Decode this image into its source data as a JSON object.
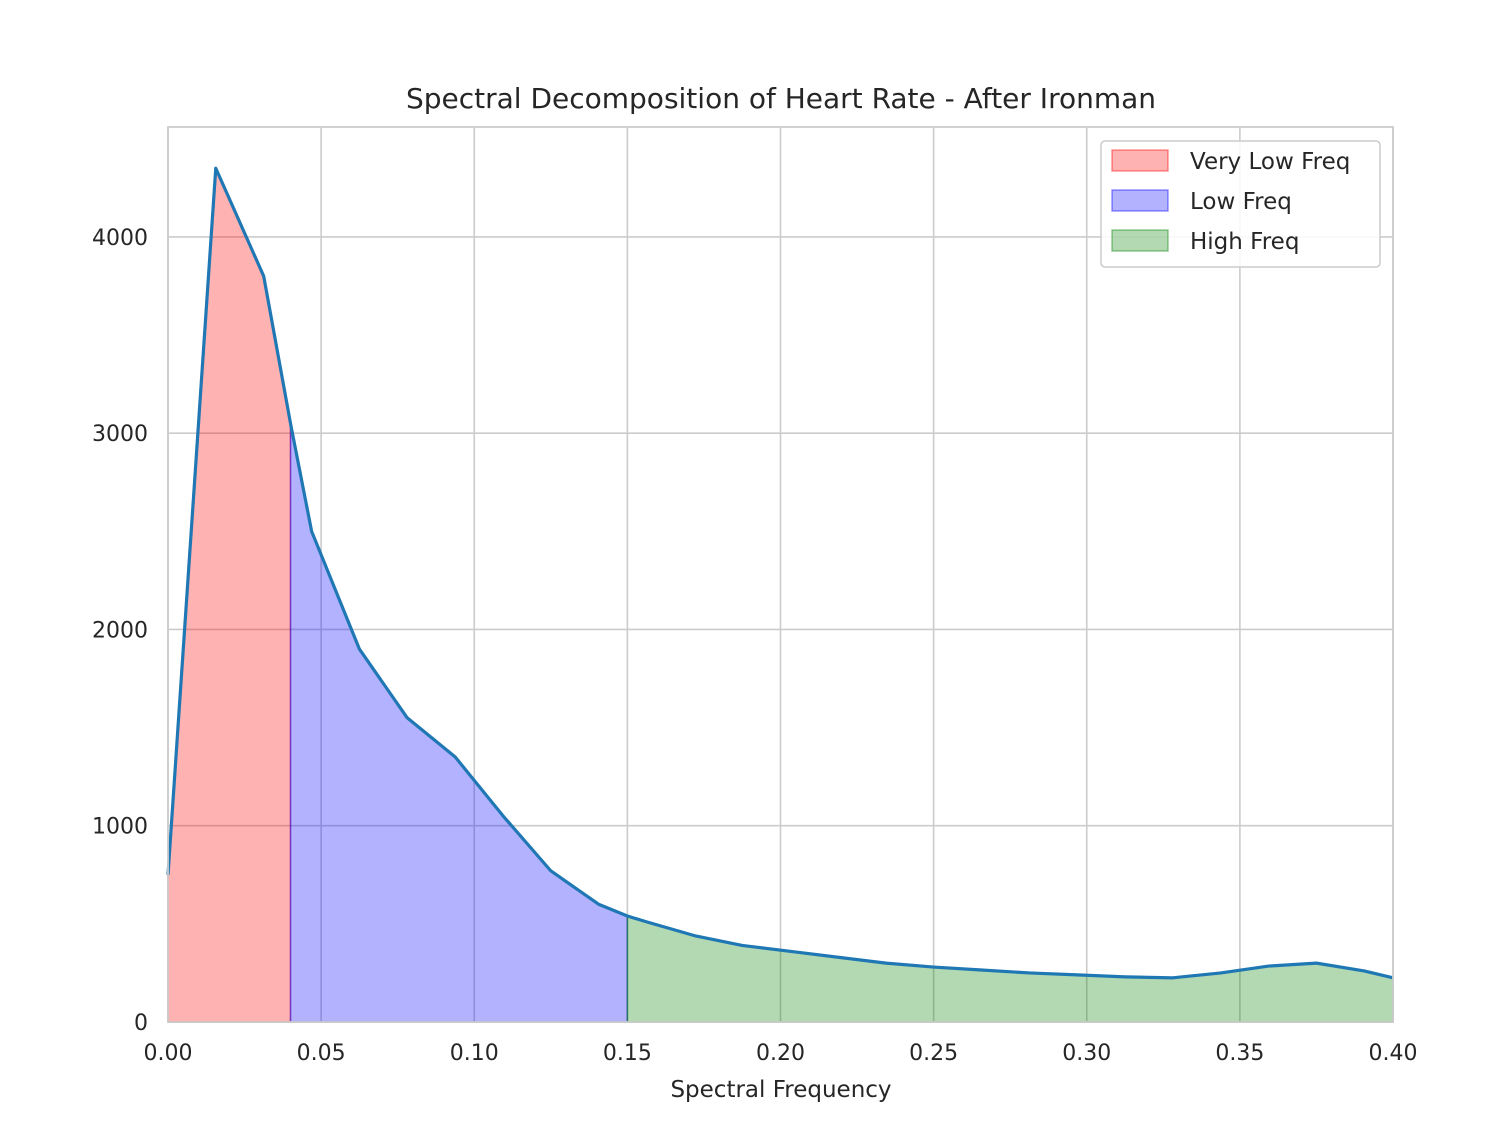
{
  "chart_data": {
    "type": "area",
    "title": "Spectral Decomposition of Heart Rate - After Ironman",
    "xlabel": "Spectral Frequency",
    "ylabel": "",
    "xlim": [
      0.0,
      0.4
    ],
    "ylim": [
      0,
      4560
    ],
    "xticks": [
      "0.00",
      "0.05",
      "0.10",
      "0.15",
      "0.20",
      "0.25",
      "0.30",
      "0.35",
      "0.40"
    ],
    "xtick_values": [
      0.0,
      0.05,
      0.1,
      0.15,
      0.2,
      0.25,
      0.3,
      0.35,
      0.4
    ],
    "yticks": [
      "0",
      "1000",
      "2000",
      "3000",
      "4000"
    ],
    "ytick_values": [
      0,
      1000,
      2000,
      3000,
      4000
    ],
    "grid": true,
    "legend_position": "top-right",
    "line_color": "#1f77b4",
    "x": [
      0.0,
      0.0156,
      0.03125,
      0.04,
      0.0469,
      0.0625,
      0.0781,
      0.0938,
      0.1094,
      0.125,
      0.1406,
      0.15,
      0.1563,
      0.1719,
      0.1875,
      0.2031,
      0.2188,
      0.2344,
      0.25,
      0.2656,
      0.2813,
      0.2969,
      0.3125,
      0.3281,
      0.3438,
      0.3594,
      0.375,
      0.3906,
      0.4
    ],
    "y": [
      750,
      4350,
      3800,
      3050,
      2500,
      1900,
      1550,
      1350,
      1050,
      770,
      600,
      540,
      510,
      440,
      390,
      360,
      330,
      300,
      280,
      265,
      250,
      240,
      230,
      225,
      250,
      285,
      300,
      260,
      225
    ],
    "bands": [
      {
        "name": "Very Low Freq",
        "range": [
          0.0,
          0.04
        ],
        "color": "#ff0000"
      },
      {
        "name": "Low Freq",
        "range": [
          0.04,
          0.15
        ],
        "color": "#0000ff"
      },
      {
        "name": "High Freq",
        "range": [
          0.15,
          0.4
        ],
        "color": "#008000"
      }
    ]
  }
}
